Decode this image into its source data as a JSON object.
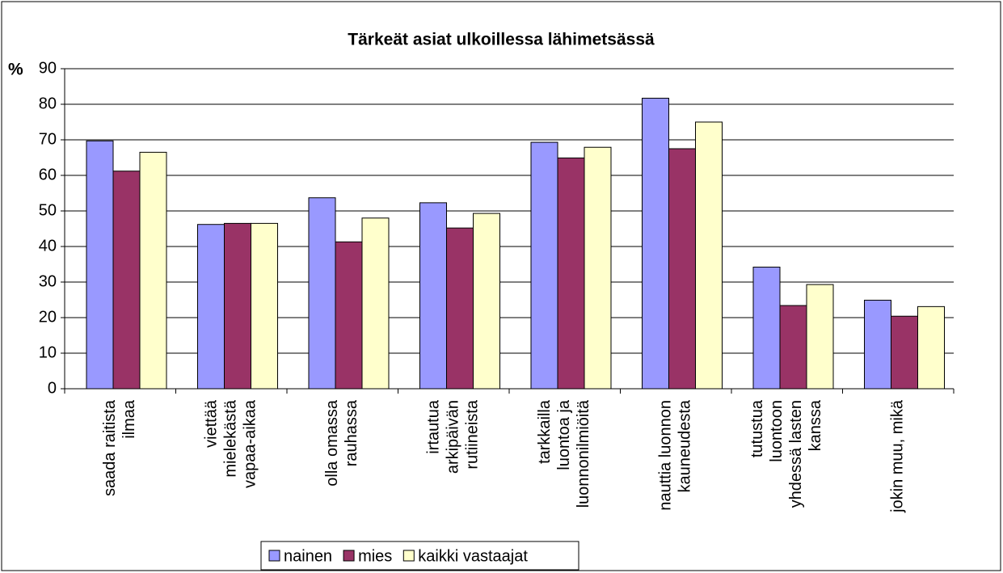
{
  "chart_data": {
    "type": "bar",
    "title": "Tärkeät asiat ulkoillessa lähimetsässä",
    "y_label": "%",
    "categories": [
      "saada raitista ilmaa",
      "viettää mielekästä vapaa-aikaa",
      "olla omassa rauhassa",
      "irtautua arkipäivän rutiineista",
      "tarkkailla luontoa ja luonnonilmiöitä",
      "nauttia luonnon kauneudesta",
      "tutustua luontoon yhdessä lasten kanssa",
      "jokin muu, mikä"
    ],
    "series": [
      {
        "name": "nainen",
        "color": "#9999ff",
        "values": [
          69.7,
          46.2,
          53.7,
          52.3,
          69.3,
          81.7,
          34.2,
          24.9
        ]
      },
      {
        "name": "mies",
        "color": "#993366",
        "values": [
          61.2,
          46.5,
          41.3,
          45.2,
          64.9,
          67.5,
          23.4,
          20.4
        ]
      },
      {
        "name": "kaikki vastaajat",
        "color": "#ffffcc",
        "values": [
          66.5,
          46.5,
          48,
          49.3,
          67.9,
          75,
          29.3,
          23.1
        ]
      }
    ],
    "ylim": [
      0,
      90
    ],
    "yticks": [
      0,
      10,
      20,
      30,
      40,
      50,
      60,
      70,
      80,
      90
    ],
    "grid": true,
    "legend": "bottom"
  }
}
